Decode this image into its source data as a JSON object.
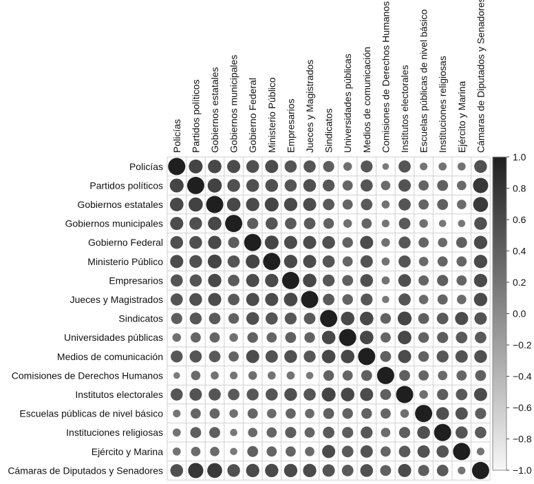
{
  "chart_data": {
    "type": "heatmap",
    "variables": [
      "Policías",
      "Partidos políticos",
      "Gobiernos estatales",
      "Gobiernos municipales",
      "Gobierno Federal",
      "Ministerio Público",
      "Empresarios",
      "Jueces y Magistrados",
      "Sindicatos",
      "Universidades públicas",
      "Medios de comunicación",
      "Comisiones de Derechos Humanos",
      "Institutos electorales",
      "Escuelas públicas de nivel básico",
      "Instituciones religiosas",
      "Ejército y Marina",
      "Cámaras de Diputados y Senadores"
    ],
    "matrix": [
      [
        1.0,
        0.65,
        0.62,
        0.58,
        0.55,
        0.58,
        0.5,
        0.5,
        0.42,
        0.25,
        0.48,
        0.15,
        0.5,
        0.2,
        0.22,
        0.22,
        0.55
      ],
      [
        0.65,
        1.0,
        0.68,
        0.55,
        0.55,
        0.55,
        0.5,
        0.55,
        0.48,
        0.35,
        0.5,
        0.3,
        0.52,
        0.35,
        0.4,
        0.3,
        0.78
      ],
      [
        0.62,
        0.68,
        1.0,
        0.62,
        0.6,
        0.65,
        0.6,
        0.58,
        0.45,
        0.35,
        0.45,
        0.22,
        0.5,
        0.35,
        0.4,
        0.3,
        0.75
      ],
      [
        0.58,
        0.55,
        0.62,
        1.0,
        0.42,
        0.5,
        0.45,
        0.45,
        0.38,
        0.25,
        0.35,
        0.2,
        0.45,
        0.25,
        0.18,
        0.18,
        0.55
      ],
      [
        0.55,
        0.55,
        0.6,
        0.42,
        1.0,
        0.65,
        0.58,
        0.58,
        0.55,
        0.38,
        0.58,
        0.25,
        0.48,
        0.35,
        0.3,
        0.4,
        0.6
      ],
      [
        0.58,
        0.55,
        0.65,
        0.5,
        0.65,
        1.0,
        0.6,
        0.58,
        0.5,
        0.35,
        0.52,
        0.22,
        0.5,
        0.3,
        0.35,
        0.35,
        0.6
      ],
      [
        0.5,
        0.5,
        0.6,
        0.45,
        0.58,
        0.6,
        1.0,
        0.62,
        0.48,
        0.4,
        0.55,
        0.22,
        0.55,
        0.35,
        0.42,
        0.35,
        0.6
      ],
      [
        0.5,
        0.55,
        0.58,
        0.45,
        0.58,
        0.58,
        0.62,
        1.0,
        0.45,
        0.38,
        0.48,
        0.18,
        0.5,
        0.3,
        0.35,
        0.3,
        0.6
      ],
      [
        0.42,
        0.48,
        0.45,
        0.38,
        0.55,
        0.5,
        0.48,
        0.45,
        1.0,
        0.62,
        0.62,
        0.38,
        0.65,
        0.4,
        0.45,
        0.58,
        0.52
      ],
      [
        0.25,
        0.35,
        0.35,
        0.25,
        0.38,
        0.35,
        0.4,
        0.38,
        0.62,
        1.0,
        0.62,
        0.35,
        0.62,
        0.38,
        0.42,
        0.45,
        0.45
      ],
      [
        0.48,
        0.5,
        0.45,
        0.35,
        0.58,
        0.52,
        0.55,
        0.48,
        0.62,
        0.62,
        1.0,
        0.4,
        0.58,
        0.38,
        0.48,
        0.52,
        0.55
      ],
      [
        0.15,
        0.3,
        0.22,
        0.2,
        0.25,
        0.22,
        0.22,
        0.18,
        0.38,
        0.35,
        0.4,
        1.0,
        0.4,
        0.35,
        0.3,
        0.35,
        0.4
      ],
      [
        0.5,
        0.52,
        0.5,
        0.45,
        0.48,
        0.5,
        0.55,
        0.5,
        0.65,
        0.62,
        0.58,
        0.4,
        1.0,
        0.25,
        0.42,
        0.45,
        0.58
      ],
      [
        0.2,
        0.35,
        0.35,
        0.25,
        0.35,
        0.3,
        0.35,
        0.3,
        0.4,
        0.38,
        0.38,
        0.35,
        0.25,
        1.0,
        0.55,
        0.52,
        0.42
      ],
      [
        0.22,
        0.4,
        0.4,
        0.18,
        0.3,
        0.35,
        0.42,
        0.35,
        0.45,
        0.42,
        0.48,
        0.3,
        0.42,
        0.55,
        1.0,
        0.5,
        0.45
      ],
      [
        0.22,
        0.3,
        0.3,
        0.18,
        0.4,
        0.35,
        0.35,
        0.3,
        0.58,
        0.45,
        0.52,
        0.35,
        0.45,
        0.52,
        0.5,
        1.0,
        0.2
      ],
      [
        0.55,
        0.78,
        0.75,
        0.55,
        0.6,
        0.6,
        0.6,
        0.6,
        0.52,
        0.45,
        0.55,
        0.4,
        0.58,
        0.42,
        0.45,
        0.2,
        1.0
      ]
    ],
    "scale": {
      "range": [
        -1.0,
        1.0
      ],
      "ticks": [
        "1.0",
        "0.8",
        "0.6",
        "0.4",
        "0.2",
        "0.0",
        "−0.2",
        "−0.4",
        "−0.6",
        "−0.8",
        "−1.0"
      ],
      "colors": {
        "low": "#f7f7f7",
        "high": "#1f1f1f"
      }
    },
    "grid": true,
    "legend": "right"
  }
}
